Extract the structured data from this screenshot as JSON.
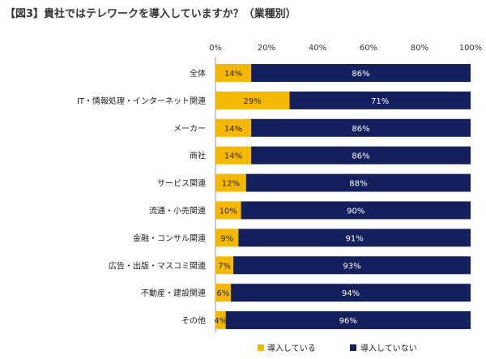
{
  "title": "【図3】貴社ではテレワークを導入していますか？（業種別）",
  "colors": {
    "yes": "#F5B800",
    "no": "#14205E",
    "axis": "#999999"
  },
  "chart_data": {
    "type": "bar",
    "orientation": "horizontal",
    "stacked": true,
    "percent": true,
    "xlim": [
      0,
      100
    ],
    "ticks": [
      "0%",
      "20%",
      "40%",
      "60%",
      "80%",
      "100%"
    ],
    "tick_values": [
      0,
      20,
      40,
      60,
      80,
      100
    ],
    "categories": [
      "全体",
      "IT・情報処理・インターネット関連",
      "メーカー",
      "商社",
      "サービス関連",
      "流通・小売関連",
      "金融・コンサル関連",
      "広告・出版・マスコミ関連",
      "不動産・建設関連",
      "その他"
    ],
    "series": [
      {
        "name": "導入している",
        "values": [
          14,
          29,
          14,
          14,
          12,
          10,
          9,
          7,
          6,
          4
        ]
      },
      {
        "name": "導入していない",
        "values": [
          86,
          71,
          86,
          86,
          88,
          90,
          91,
          93,
          94,
          96
        ]
      }
    ],
    "legend_position": "bottom"
  }
}
